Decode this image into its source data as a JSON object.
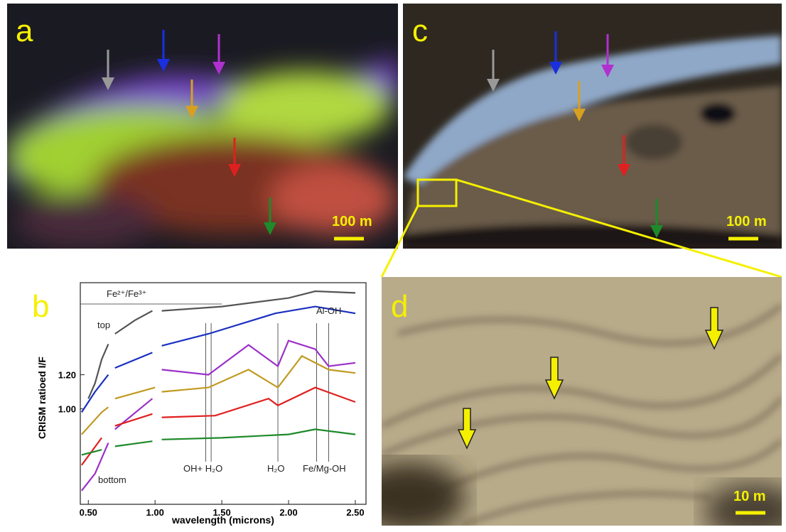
{
  "panels": {
    "a": {
      "label": "a",
      "scale": "100 m"
    },
    "c": {
      "label": "c",
      "scale": "100 m"
    },
    "d": {
      "label": "d",
      "scale": "10 m"
    },
    "b": {
      "label": "b"
    }
  },
  "chart_data": {
    "type": "line",
    "xlabel": "wavelength (microns)",
    "ylabel": "CRISM ratioed I/F",
    "xlim": [
      0.44,
      2.58
    ],
    "ylim": [
      0.44,
      1.74
    ],
    "xticks": [
      {
        "value": 0.5,
        "label": "0.50"
      },
      {
        "value": 1,
        "label": "1.00"
      },
      {
        "value": 1.5,
        "label": "1.50"
      },
      {
        "value": 2,
        "label": "2.00"
      },
      {
        "value": 2.5,
        "label": "2.50"
      }
    ],
    "yticks": [
      {
        "value": 1,
        "label": "1.00"
      },
      {
        "value": 1.2,
        "label": "1.20"
      }
    ],
    "series": [
      {
        "color": "#555555",
        "x": [
          0.5,
          0.55,
          0.6,
          0.65,
          null,
          0.7,
          0.85,
          0.98,
          null,
          1.05,
          1.5,
          2.0,
          2.2,
          2.5
        ],
        "values": [
          1.06,
          1.15,
          1.29,
          1.38,
          null,
          1.44,
          1.52,
          1.575,
          null,
          1.575,
          1.6,
          1.65,
          1.69,
          1.68
        ]
      },
      {
        "color": "#1a2fc0",
        "x": [
          0.45,
          0.55,
          0.65,
          null,
          0.7,
          0.98,
          null,
          1.05,
          1.4,
          1.9,
          2.2,
          2.5
        ],
        "values": [
          0.98,
          1.1,
          1.2,
          null,
          1.24,
          1.33,
          null,
          1.37,
          1.44,
          1.56,
          1.6,
          1.56
        ]
      },
      {
        "color": "#9b30c8",
        "x": [
          0.45,
          0.55,
          0.65,
          null,
          0.7,
          0.98,
          null,
          1.05,
          1.4,
          1.7,
          1.92,
          2.0,
          2.2,
          2.3,
          2.5
        ],
        "values": [
          0.52,
          0.62,
          0.8,
          null,
          0.88,
          1.06,
          null,
          1.23,
          1.2,
          1.375,
          1.25,
          1.4,
          1.35,
          1.25,
          1.27
        ]
      },
      {
        "color": "#c09a20",
        "x": [
          0.45,
          0.6,
          0.65,
          null,
          0.7,
          1.0,
          null,
          1.05,
          1.4,
          1.7,
          1.92,
          2.1,
          2.3,
          2.5
        ],
        "values": [
          0.85,
          0.98,
          1.01,
          null,
          1.06,
          1.125,
          null,
          1.1,
          1.125,
          1.23,
          1.125,
          1.31,
          1.23,
          1.21
        ]
      },
      {
        "color": "#e02020",
        "x": [
          0.45,
          0.6,
          null,
          0.7,
          0.98,
          null,
          1.05,
          1.45,
          1.85,
          1.92,
          2.2,
          2.5
        ],
        "values": [
          0.67,
          0.83,
          null,
          0.9,
          0.97,
          null,
          0.95,
          0.96,
          1.06,
          1.02,
          1.125,
          1.04
        ]
      },
      {
        "color": "#1e8a2a",
        "x": [
          0.45,
          0.6,
          null,
          0.7,
          0.98,
          null,
          1.05,
          1.5,
          2.0,
          2.2,
          2.5
        ],
        "values": [
          0.73,
          0.76,
          null,
          0.78,
          0.81,
          null,
          0.82,
          0.83,
          0.85,
          0.88,
          0.85
        ]
      }
    ],
    "band_lines": [
      1.38,
      1.42,
      1.92,
      2.21,
      2.3
    ],
    "fe_range": [
      0.44,
      1.5
    ],
    "annotations": {
      "fe": "Fe²⁺/Fe³⁺",
      "top": "top",
      "bottom": "bottom",
      "aloh": "Al-OH",
      "ohh2o": "OH+ H₂O",
      "h2o": "H₂O",
      "femgoh": "Fe/Mg-OH"
    }
  }
}
